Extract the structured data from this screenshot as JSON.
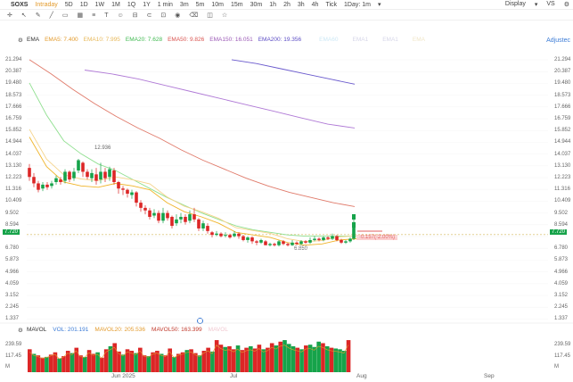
{
  "topbar": {
    "symbol": "SOXS",
    "timeframes": [
      "Intraday",
      "5D",
      "1D",
      "1W",
      "1M",
      "1Q",
      "1Y",
      "1 min",
      "3m",
      "5m",
      "10m",
      "15m",
      "30m",
      "1h",
      "2h",
      "3h",
      "4h",
      "Tick",
      "1Day: 1m"
    ],
    "active_timeframe": "Intraday",
    "display_label": "Display",
    "right_extra": "VS"
  },
  "indicators": {
    "label": "EMA",
    "ema5": "EMA5: 7.400",
    "ema10": "EMA10: 7.995",
    "ema20": "EMA20: 7.628",
    "ema50": "EMA50: 9.826",
    "ema150": "EMA150: 16.051",
    "ema200": "EMA200: 19.356",
    "extra1": "EMA60",
    "extra2": "EMA1",
    "extra3": "EMA1",
    "extra4": "EMA",
    "adjusted": "Adjustec"
  },
  "y_axis": [
    "21.294",
    "20.387",
    "19.480",
    "18.573",
    "17.666",
    "16.759",
    "15.852",
    "14.944",
    "14.037",
    "13.130",
    "12.223",
    "11.316",
    "10.409",
    "9.502",
    "8.594",
    "7.720",
    "6.780",
    "5.873",
    "4.966",
    "4.059",
    "3.152",
    "2.245",
    "1.337"
  ],
  "price_tag": "7.720",
  "change_tag": "-0.157(-2.00%)",
  "annotations": {
    "high": "12.936",
    "low": "6.850"
  },
  "volume": {
    "label": "MAVOL",
    "vol": "VOL: 201.191",
    "mavol20": "MAVOL20: 205.536",
    "mavol50": "MAVOL50: 163.399",
    "extra": "MAVOL",
    "y_axis": [
      "239.59",
      "117.45",
      "M"
    ]
  },
  "x_axis": [
    "Jun 2025",
    "Jul",
    "Aug",
    "Sep"
  ],
  "colors": {
    "up": "#16a34a",
    "down": "#dc2626",
    "ema5": "#f0b429",
    "ema10": "#f5d38a",
    "ema20": "#8fdf8f",
    "ema50": "#e07a6a",
    "ema150": "#b07ad6",
    "ema200": "#6a5acd",
    "accent": "#e39b2d"
  },
  "chart_data": {
    "type": "candlestick",
    "ylim": [
      1.337,
      21.294
    ],
    "series": [
      {
        "name": "EMA5",
        "values": [
          15.3,
          13.0,
          11.8,
          11.5,
          11.4,
          11.7,
          11.5,
          11.2,
          10.2,
          9.5,
          9.1,
          8.6,
          7.9,
          7.7,
          7.5,
          7.1,
          6.9,
          7.0,
          7.3,
          7.4
        ]
      },
      {
        "name": "EMA20",
        "values": [
          19.5,
          17.0,
          15.0,
          14.0,
          13.2,
          12.7,
          12.0,
          11.3,
          10.6,
          10.0,
          9.4,
          8.9,
          8.4,
          8.1,
          7.9,
          7.7,
          7.6,
          7.6,
          7.6,
          7.6
        ]
      },
      {
        "name": "EMA50",
        "values": [
          21.3,
          20.2,
          19.0,
          17.9,
          16.9,
          16.0,
          15.2,
          14.3,
          13.5,
          12.8,
          12.1,
          11.5,
          11.0,
          10.6,
          10.2,
          9.9
        ]
      },
      {
        "name": "EMA150",
        "values": [
          20.5,
          20.2,
          19.8,
          19.3,
          18.8,
          18.3,
          17.8,
          17.3,
          16.8,
          16.3,
          16.0
        ]
      },
      {
        "name": "EMA200",
        "values": [
          21.3,
          21.0,
          20.6,
          20.2,
          19.8,
          19.4
        ]
      }
    ]
  }
}
